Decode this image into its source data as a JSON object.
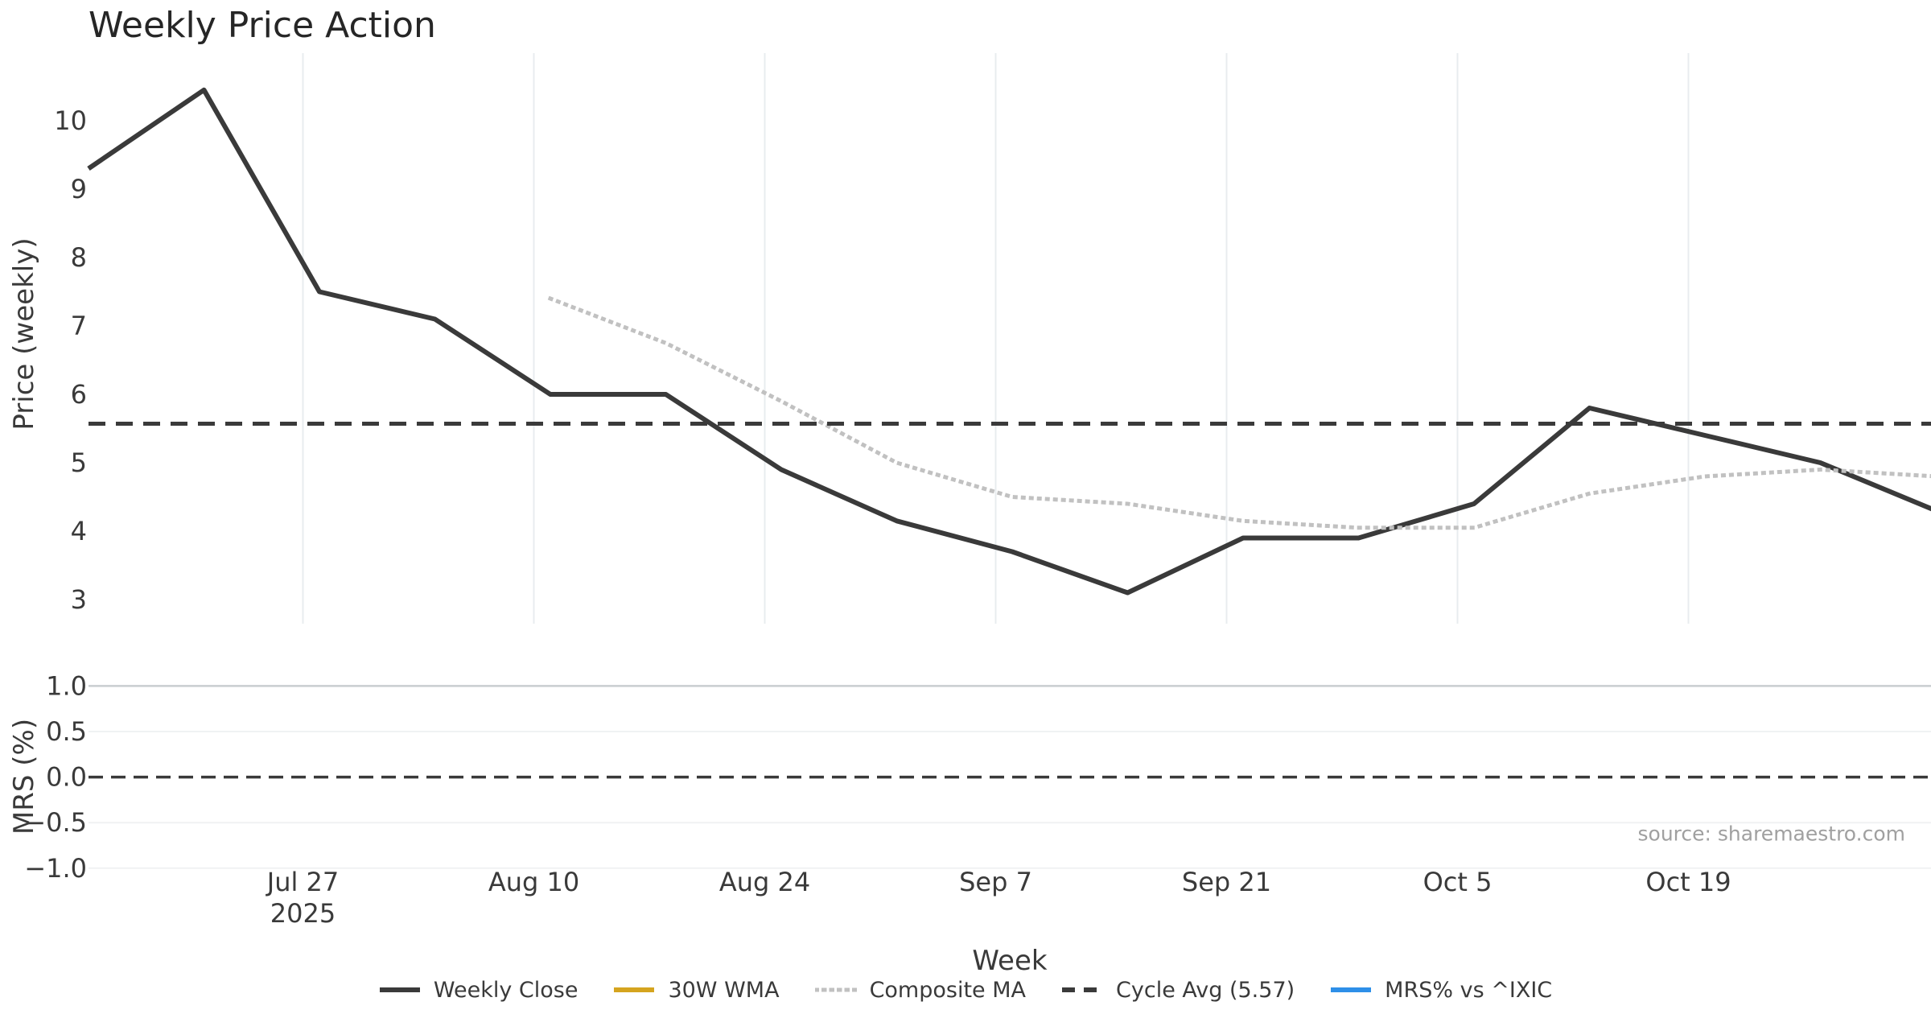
{
  "chart": {
    "title": "Weekly Price Action",
    "source": "source: sharemaestro.com",
    "background": "#ffffff",
    "grid_color": "#e8ecef",
    "text_color": "#3a3a3a",
    "source_color": "#a0a0a0"
  },
  "legend": {
    "position": "bottom center",
    "items": [
      {
        "label": "Weekly Close",
        "color": "#3a3a3a",
        "style": "solid"
      },
      {
        "label": "30W WMA",
        "color": "#d5a41f",
        "style": "solid"
      },
      {
        "label": "Composite MA",
        "color": "#c1c1c1",
        "style": "dotted"
      },
      {
        "label": "Cycle Avg (5.57)",
        "color": "#3a3a3a",
        "style": "dashed"
      },
      {
        "label": "MRS% vs ^IXIC",
        "color": "#2e8fe8",
        "style": "solid"
      }
    ]
  },
  "chart_data": [
    {
      "type": "line",
      "panel": "price",
      "title": "Weekly Price Action",
      "ylabel": "Price (weekly)",
      "xlabel": "Week",
      "ylim": [
        2.65,
        11.0
      ],
      "grid": "vertical-x-only",
      "yticks": [
        {
          "v": 10,
          "label": "10"
        },
        {
          "v": 9,
          "label": "9"
        },
        {
          "v": 8,
          "label": "8"
        },
        {
          "v": 7,
          "label": "7"
        },
        {
          "v": 6,
          "label": "6"
        },
        {
          "v": 5,
          "label": "5"
        },
        {
          "v": 4,
          "label": "4"
        },
        {
          "v": 3,
          "label": "3"
        }
      ],
      "xticks": [
        {
          "day": 13,
          "lines": [
            "Jul 27",
            "2025"
          ]
        },
        {
          "day": 27,
          "lines": [
            "Aug 10"
          ]
        },
        {
          "day": 41,
          "lines": [
            "Aug 24"
          ]
        },
        {
          "day": 55,
          "lines": [
            "Sep 7"
          ]
        },
        {
          "day": 69,
          "lines": [
            "Sep 21"
          ]
        },
        {
          "day": 83,
          "lines": [
            "Oct 5"
          ]
        },
        {
          "day": 97,
          "lines": [
            "Oct 19"
          ]
        }
      ],
      "series": [
        {
          "name": "Weekly Close",
          "color": "#3a3a3a",
          "style": "solid",
          "start_day": 0,
          "step_days": 7,
          "dates": [
            "Jul 14",
            "Jul 21",
            "Jul 28",
            "Aug 4",
            "Aug 11",
            "Aug 18",
            "Aug 25",
            "Sep 1",
            "Sep 8",
            "Sep 15",
            "Sep 22",
            "Sep 29",
            "Oct 6",
            "Oct 13",
            "Oct 20",
            "Oct 27",
            "Nov 3"
          ],
          "values": [
            9.3,
            10.45,
            7.5,
            7.1,
            6.0,
            6.0,
            4.9,
            4.15,
            3.7,
            3.1,
            3.9,
            3.9,
            4.4,
            5.8,
            5.4,
            5.0,
            4.3
          ]
        },
        {
          "name": "30W WMA",
          "color": "#d5a41f",
          "style": "solid",
          "start_day": 0,
          "step_days": 7,
          "dates": [],
          "values": [],
          "note": "in legend only, no visible points"
        },
        {
          "name": "Composite MA",
          "color": "#c1c1c1",
          "style": "dotted",
          "start_day": 28,
          "step_days": 7,
          "dates": [
            "Aug 11",
            "Aug 18",
            "Aug 25",
            "Sep 1",
            "Sep 8",
            "Sep 15",
            "Sep 22",
            "Sep 29",
            "Oct 6",
            "Oct 13",
            "Oct 20",
            "Oct 27",
            "Nov 3"
          ],
          "values": [
            7.4,
            6.75,
            5.9,
            5.0,
            4.5,
            4.4,
            4.15,
            4.05,
            4.05,
            4.55,
            4.8,
            4.9,
            4.8
          ]
        },
        {
          "name": "Cycle Avg (5.57)",
          "color": "#3a3a3a",
          "style": "dashed",
          "hline": 5.57
        }
      ]
    },
    {
      "type": "line",
      "panel": "mrs",
      "ylabel": "MRS (%)",
      "ylim": [
        -1.08,
        1.07
      ],
      "grid": "horizontal-y-only",
      "yticks": [
        {
          "v": 1.0,
          "label": "1.0"
        },
        {
          "v": 0.5,
          "label": "0.5"
        },
        {
          "v": 0.0,
          "label": "0.0"
        },
        {
          "v": -0.5,
          "label": "−0.5"
        },
        {
          "v": -1.0,
          "label": "−1.0"
        }
      ],
      "zero_line": {
        "v": 0.0,
        "style": "dashed",
        "color": "#3a3a3a"
      },
      "series": [
        {
          "name": "MRS% vs ^IXIC",
          "color": "#2e8fe8",
          "style": "solid",
          "dates": [],
          "values": [],
          "note": "in legend only, no visible points"
        }
      ]
    }
  ]
}
